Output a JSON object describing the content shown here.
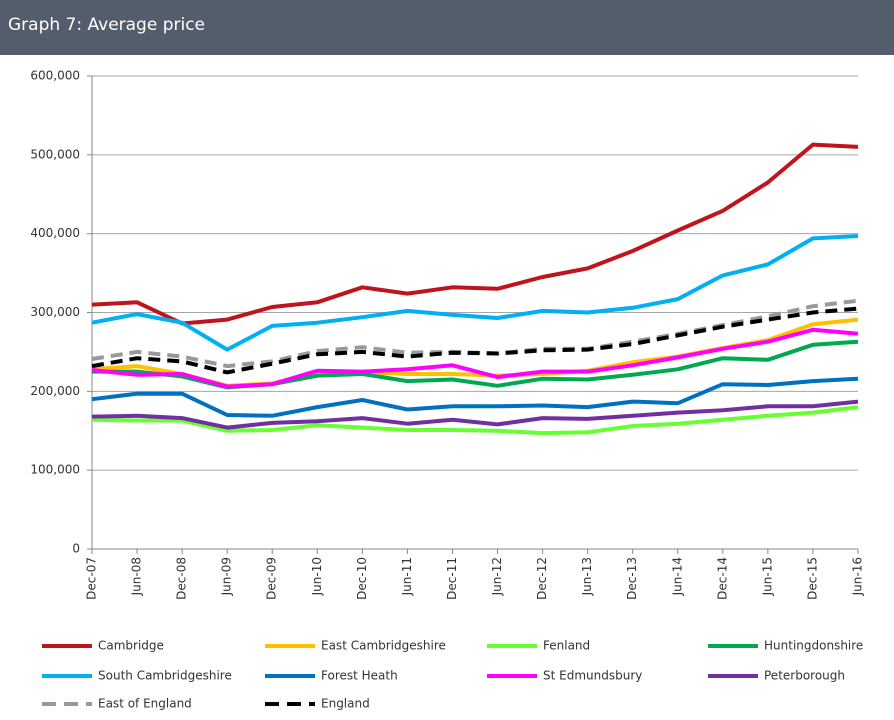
{
  "header": {
    "title": "Graph 7: Average price"
  },
  "chart_data": {
    "type": "line",
    "categories": [
      "Dec-07",
      "Jun-08",
      "Dec-08",
      "Jun-09",
      "Dec-09",
      "Jun-10",
      "Dec-10",
      "Jun-11",
      "Dec-11",
      "Jun-12",
      "Dec-12",
      "Jun-13",
      "Dec-13",
      "Jun-14",
      "Dec-14",
      "Jun-15",
      "Dec-15",
      "Jun-16"
    ],
    "ylim": [
      0,
      600000
    ],
    "yticks": [
      0,
      {
        "value": 100000,
        "label": "100,000"
      },
      {
        "value": 200000,
        "label": "200,000"
      },
      {
        "value": 300000,
        "label": "300,000"
      },
      {
        "value": 400000,
        "label": "400,000"
      },
      {
        "value": 500000,
        "label": "500,000"
      },
      {
        "value": 600000,
        "label": "600,000"
      }
    ],
    "grid": true,
    "legend": "bottom",
    "series": [
      {
        "name": "Cambridge",
        "color": "#c0141c",
        "dashed": false,
        "values": [
          310000,
          313000,
          286000,
          291000,
          307000,
          313000,
          332000,
          324000,
          332000,
          330000,
          345000,
          356000,
          378000,
          404000,
          429000,
          465000,
          513000,
          510000
        ]
      },
      {
        "name": "East Cambridgeshire",
        "color": "#ffc000",
        "dashed": false,
        "values": [
          228000,
          232000,
          222000,
          207000,
          210000,
          224000,
          224000,
          222000,
          222000,
          220000,
          222000,
          226000,
          237000,
          244000,
          255000,
          265000,
          285000,
          291000
        ]
      },
      {
        "name": "Fenland",
        "color": "#66ff33",
        "dashed": false,
        "values": [
          164000,
          163000,
          163000,
          150000,
          151000,
          157000,
          154000,
          151000,
          151000,
          150000,
          147000,
          148000,
          156000,
          159000,
          164000,
          169000,
          173000,
          180000
        ]
      },
      {
        "name": "Huntingdonshire",
        "color": "#00a850",
        "dashed": false,
        "values": [
          225000,
          225000,
          219000,
          205000,
          209000,
          220000,
          222000,
          213000,
          215000,
          207000,
          216000,
          215000,
          221000,
          228000,
          242000,
          240000,
          259000,
          263000
        ]
      },
      {
        "name": "South Cambridgeshire",
        "color": "#00b0f0",
        "dashed": false,
        "values": [
          287000,
          298000,
          287000,
          253000,
          283000,
          287000,
          294000,
          302000,
          297000,
          293000,
          302000,
          300000,
          306000,
          317000,
          347000,
          361000,
          394000,
          397000
        ]
      },
      {
        "name": "Forest Heath",
        "color": "#0070c0",
        "dashed": false,
        "values": [
          190000,
          197000,
          197000,
          170000,
          169000,
          180000,
          189000,
          177000,
          181000,
          181000,
          182000,
          180000,
          187000,
          185000,
          209000,
          208000,
          213000,
          216000
        ]
      },
      {
        "name": "St Edmundsbury",
        "color": "#ff00ff",
        "dashed": false,
        "values": [
          227000,
          221000,
          222000,
          206000,
          209000,
          226000,
          225000,
          228000,
          233000,
          218000,
          225000,
          225000,
          233000,
          243000,
          254000,
          263000,
          278000,
          273000
        ]
      },
      {
        "name": "Peterborough",
        "color": "#7030a0",
        "dashed": false,
        "values": [
          168000,
          169000,
          166000,
          154000,
          160000,
          162000,
          166000,
          159000,
          164000,
          158000,
          166000,
          165000,
          169000,
          173000,
          176000,
          181000,
          181000,
          187000
        ]
      },
      {
        "name": "East of England",
        "color": "#999999",
        "dashed": true,
        "values": [
          241000,
          250000,
          244000,
          232000,
          238000,
          251000,
          256000,
          249000,
          250000,
          248000,
          254000,
          254000,
          263000,
          273000,
          284000,
          295000,
          308000,
          315000
        ]
      },
      {
        "name": "England",
        "color": "#000000",
        "dashed": true,
        "values": [
          232000,
          242000,
          238000,
          224000,
          235000,
          247000,
          250000,
          244000,
          249000,
          248000,
          252000,
          253000,
          260000,
          271000,
          282000,
          291000,
          300000,
          305000
        ]
      }
    ]
  }
}
